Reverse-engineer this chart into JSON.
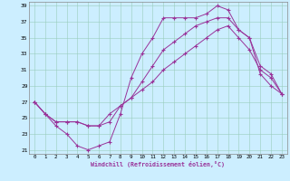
{
  "xlabel": "Windchill (Refroidissement éolien,°C)",
  "background_color": "#cceeff",
  "grid_color": "#99ccbb",
  "line_color": "#993399",
  "marker": "+",
  "xlim": [
    -0.5,
    23.5
  ],
  "ylim": [
    20.5,
    39.5
  ],
  "yticks": [
    21,
    23,
    25,
    27,
    29,
    31,
    33,
    35,
    37,
    39
  ],
  "xticks": [
    0,
    1,
    2,
    3,
    4,
    5,
    6,
    7,
    8,
    9,
    10,
    11,
    12,
    13,
    14,
    15,
    16,
    17,
    18,
    19,
    20,
    21,
    22,
    23
  ],
  "series": [
    [
      27.0,
      25.5,
      24.0,
      23.0,
      21.5,
      21.0,
      21.5,
      22.0,
      25.5,
      30.0,
      33.0,
      35.0,
      37.5,
      37.5,
      37.5,
      37.5,
      38.0,
      39.0,
      38.5,
      36.0,
      35.0,
      30.5,
      29.0,
      28.0
    ],
    [
      27.0,
      25.5,
      24.5,
      24.5,
      24.5,
      24.0,
      24.0,
      24.5,
      26.5,
      27.5,
      29.5,
      31.5,
      33.5,
      34.5,
      35.5,
      36.5,
      37.0,
      37.5,
      37.5,
      36.0,
      35.0,
      31.5,
      30.5,
      28.0
    ],
    [
      27.0,
      25.5,
      24.5,
      24.5,
      24.5,
      24.0,
      24.0,
      25.5,
      26.5,
      27.5,
      28.5,
      29.5,
      31.0,
      32.0,
      33.0,
      34.0,
      35.0,
      36.0,
      36.5,
      35.0,
      33.5,
      31.0,
      30.0,
      28.0
    ]
  ]
}
